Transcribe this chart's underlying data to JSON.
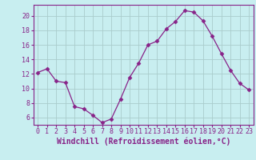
{
  "x": [
    0,
    1,
    2,
    3,
    4,
    5,
    6,
    7,
    8,
    9,
    10,
    11,
    12,
    13,
    14,
    15,
    16,
    17,
    18,
    19,
    20,
    21,
    22,
    23
  ],
  "y": [
    12.2,
    12.7,
    11.0,
    10.8,
    7.5,
    7.2,
    6.3,
    5.3,
    5.8,
    8.5,
    11.5,
    13.5,
    16.0,
    16.5,
    18.2,
    19.2,
    20.7,
    20.5,
    19.3,
    17.2,
    14.8,
    12.5,
    10.7,
    9.8
  ],
  "line_color": "#882288",
  "marker": "D",
  "marker_size": 2.5,
  "bg_color": "#c8eef0",
  "grid_color": "#aacccc",
  "xlabel": "Windchill (Refroidissement éolien,°C)",
  "ylabel_ticks": [
    6,
    8,
    10,
    12,
    14,
    16,
    18,
    20
  ],
  "ylim": [
    5.0,
    21.5
  ],
  "xlim": [
    -0.5,
    23.5
  ],
  "xticks": [
    0,
    1,
    2,
    3,
    4,
    5,
    6,
    7,
    8,
    9,
    10,
    11,
    12,
    13,
    14,
    15,
    16,
    17,
    18,
    19,
    20,
    21,
    22,
    23
  ],
  "tick_label_color": "#882288",
  "xlabel_color": "#882288",
  "xlabel_fontsize": 7.0,
  "tick_fontsize": 6.0,
  "spine_color": "#882288"
}
